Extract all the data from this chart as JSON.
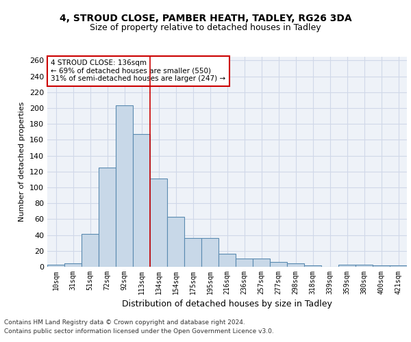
{
  "title_line1": "4, STROUD CLOSE, PAMBER HEATH, TADLEY, RG26 3DA",
  "title_line2": "Size of property relative to detached houses in Tadley",
  "xlabel": "Distribution of detached houses by size in Tadley",
  "ylabel": "Number of detached properties",
  "bin_labels": [
    "10sqm",
    "31sqm",
    "51sqm",
    "72sqm",
    "92sqm",
    "113sqm",
    "134sqm",
    "154sqm",
    "175sqm",
    "195sqm",
    "216sqm",
    "236sqm",
    "257sqm",
    "277sqm",
    "298sqm",
    "318sqm",
    "339sqm",
    "359sqm",
    "380sqm",
    "400sqm",
    "421sqm"
  ],
  "bar_heights": [
    3,
    4,
    41,
    125,
    203,
    167,
    111,
    63,
    36,
    36,
    16,
    10,
    10,
    6,
    4,
    2,
    0,
    3,
    3,
    2,
    2
  ],
  "bar_color": "#c8d8e8",
  "bar_edge_color": "#5a8ab0",
  "grid_color": "#d0d8e8",
  "background_color": "#eef2f8",
  "annotation_line1": "4 STROUD CLOSE: 136sqm",
  "annotation_line2": "← 69% of detached houses are smaller (550)",
  "annotation_line3": "31% of semi-detached houses are larger (247) →",
  "annotation_box_color": "#ffffff",
  "annotation_box_edge_color": "#cc0000",
  "vline_color": "#cc0000",
  "footer_line1": "Contains HM Land Registry data © Crown copyright and database right 2024.",
  "footer_line2": "Contains public sector information licensed under the Open Government Licence v3.0.",
  "ylim_max": 265,
  "yticks": [
    0,
    20,
    40,
    60,
    80,
    100,
    120,
    140,
    160,
    180,
    200,
    220,
    240,
    260
  ]
}
